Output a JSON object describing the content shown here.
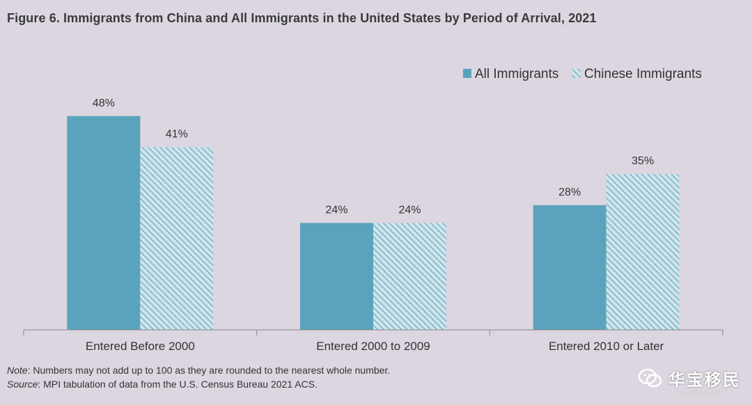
{
  "title": "Figure 6. Immigrants from China and All Immigrants in the United States by Period of Arrival, 2021",
  "note_label": "Note",
  "note_text": ": Numbers may not add up to 100 as they are rounded to the nearest whole number.",
  "source_label": "Source",
  "source_text": ": MPI tabulation of data from the U.S. Census Bureau 2021 ACS.",
  "watermark": {
    "text": "华宝移民",
    "url": "www.ihb8.com"
  },
  "chart_data": {
    "type": "bar",
    "categories": [
      "Entered Before 2000",
      "Entered 2000 to 2009",
      "Entered 2010 or Later"
    ],
    "series": [
      {
        "name": "All Immigrants",
        "values": [
          48,
          24,
          28
        ],
        "labels": [
          "48%",
          "24%",
          "28%"
        ],
        "color": "#5ba3bd",
        "pattern": "solid"
      },
      {
        "name": "Chinese Immigrants",
        "values": [
          41,
          24,
          35
        ],
        "labels": [
          "41%",
          "24%",
          "35%"
        ],
        "color": "#8ec3d6",
        "pattern": "hatched"
      }
    ],
    "ylim": [
      0,
      60
    ],
    "legend_position": "top-right",
    "grid": false
  }
}
